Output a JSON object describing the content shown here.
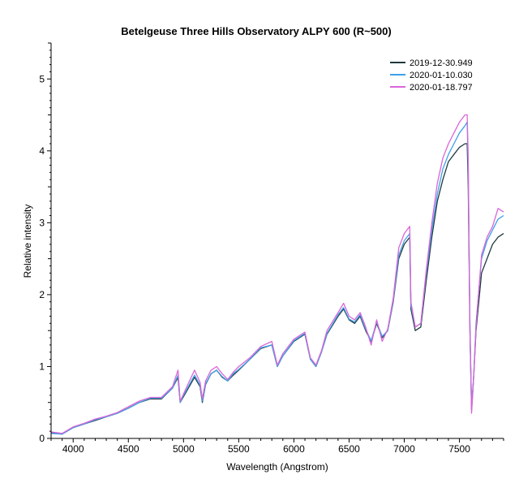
{
  "chart_data": {
    "type": "line",
    "title": "Betelgeuse  Three Hills Observatory  ALPY 600 (R~500)",
    "xlabel": "Wavelength (Angstrom)",
    "ylabel": "Relative intensity",
    "xlim": [
      3800,
      7900
    ],
    "ylim": [
      0,
      5.5
    ],
    "x_ticks": [
      4000,
      4500,
      5000,
      5500,
      6000,
      6500,
      7000,
      7500
    ],
    "x_tick_labels": [
      "4000",
      "4500",
      "5000",
      "5500",
      "6000",
      "6500",
      "7000",
      "7500"
    ],
    "y_ticks": [
      0,
      1,
      2,
      3,
      4,
      5
    ],
    "y_tick_labels": [
      "0",
      "1",
      "2",
      "3",
      "4",
      "5"
    ],
    "grid": false,
    "legend_position": "top-right",
    "x": [
      3800,
      3900,
      4000,
      4100,
      4200,
      4300,
      4400,
      4500,
      4600,
      4700,
      4800,
      4900,
      4950,
      4970,
      5000,
      5100,
      5150,
      5170,
      5200,
      5250,
      5300,
      5350,
      5400,
      5450,
      5500,
      5600,
      5700,
      5800,
      5850,
      5900,
      6000,
      6100,
      6150,
      6200,
      6250,
      6300,
      6400,
      6450,
      6500,
      6550,
      6600,
      6650,
      6700,
      6750,
      6800,
      6850,
      6900,
      6950,
      7000,
      7050,
      7060,
      7100,
      7150,
      7200,
      7250,
      7300,
      7350,
      7400,
      7450,
      7500,
      7550,
      7570,
      7580,
      7595,
      7610,
      7630,
      7650,
      7700,
      7750,
      7800,
      7850,
      7900
    ],
    "series": [
      {
        "name": "2019-12-30.949",
        "color": "#1f3a3d",
        "values": [
          0.08,
          0.06,
          0.15,
          0.2,
          0.25,
          0.3,
          0.35,
          0.42,
          0.5,
          0.55,
          0.55,
          0.7,
          0.85,
          0.5,
          0.58,
          0.85,
          0.72,
          0.5,
          0.75,
          0.9,
          0.95,
          0.85,
          0.8,
          0.88,
          0.95,
          1.1,
          1.25,
          1.3,
          1.0,
          1.15,
          1.35,
          1.45,
          1.1,
          1.0,
          1.2,
          1.45,
          1.7,
          1.8,
          1.65,
          1.6,
          1.7,
          1.5,
          1.35,
          1.6,
          1.4,
          1.5,
          1.9,
          2.5,
          2.7,
          2.8,
          1.8,
          1.5,
          1.55,
          2.2,
          2.8,
          3.3,
          3.6,
          3.85,
          3.95,
          4.05,
          4.1,
          4.1,
          3.5,
          1.5,
          0.4,
          0.9,
          1.5,
          2.3,
          2.5,
          2.7,
          2.8,
          2.85
        ]
      },
      {
        "name": "2020-01-10.030",
        "color": "#3fa0e8",
        "values": [
          0.07,
          0.06,
          0.15,
          0.2,
          0.26,
          0.3,
          0.35,
          0.42,
          0.5,
          0.56,
          0.56,
          0.7,
          0.88,
          0.5,
          0.6,
          0.88,
          0.74,
          0.52,
          0.76,
          0.9,
          0.95,
          0.86,
          0.8,
          0.9,
          0.96,
          1.1,
          1.26,
          1.3,
          1.0,
          1.15,
          1.36,
          1.46,
          1.1,
          1.0,
          1.2,
          1.46,
          1.72,
          1.82,
          1.66,
          1.62,
          1.72,
          1.52,
          1.36,
          1.62,
          1.42,
          1.5,
          1.92,
          2.55,
          2.75,
          2.85,
          1.85,
          1.55,
          1.6,
          2.3,
          2.9,
          3.4,
          3.75,
          3.95,
          4.1,
          4.25,
          4.35,
          4.4,
          3.7,
          1.6,
          0.4,
          0.9,
          1.6,
          2.5,
          2.75,
          2.9,
          3.05,
          3.1
        ]
      },
      {
        "name": "2020-01-18.797",
        "color": "#d966d9",
        "values": [
          0.09,
          0.07,
          0.16,
          0.21,
          0.27,
          0.31,
          0.36,
          0.44,
          0.52,
          0.57,
          0.57,
          0.72,
          0.95,
          0.52,
          0.62,
          0.95,
          0.78,
          0.55,
          0.8,
          0.95,
          1.0,
          0.9,
          0.82,
          0.92,
          1.0,
          1.12,
          1.28,
          1.35,
          1.02,
          1.18,
          1.38,
          1.48,
          1.12,
          1.02,
          1.22,
          1.5,
          1.75,
          1.88,
          1.7,
          1.65,
          1.75,
          1.55,
          1.3,
          1.65,
          1.35,
          1.52,
          1.95,
          2.65,
          2.85,
          2.95,
          1.9,
          1.55,
          1.6,
          2.35,
          3.0,
          3.55,
          3.9,
          4.1,
          4.25,
          4.4,
          4.5,
          4.5,
          3.9,
          1.5,
          0.35,
          0.88,
          1.55,
          2.55,
          2.8,
          2.95,
          3.2,
          3.15
        ]
      }
    ]
  }
}
